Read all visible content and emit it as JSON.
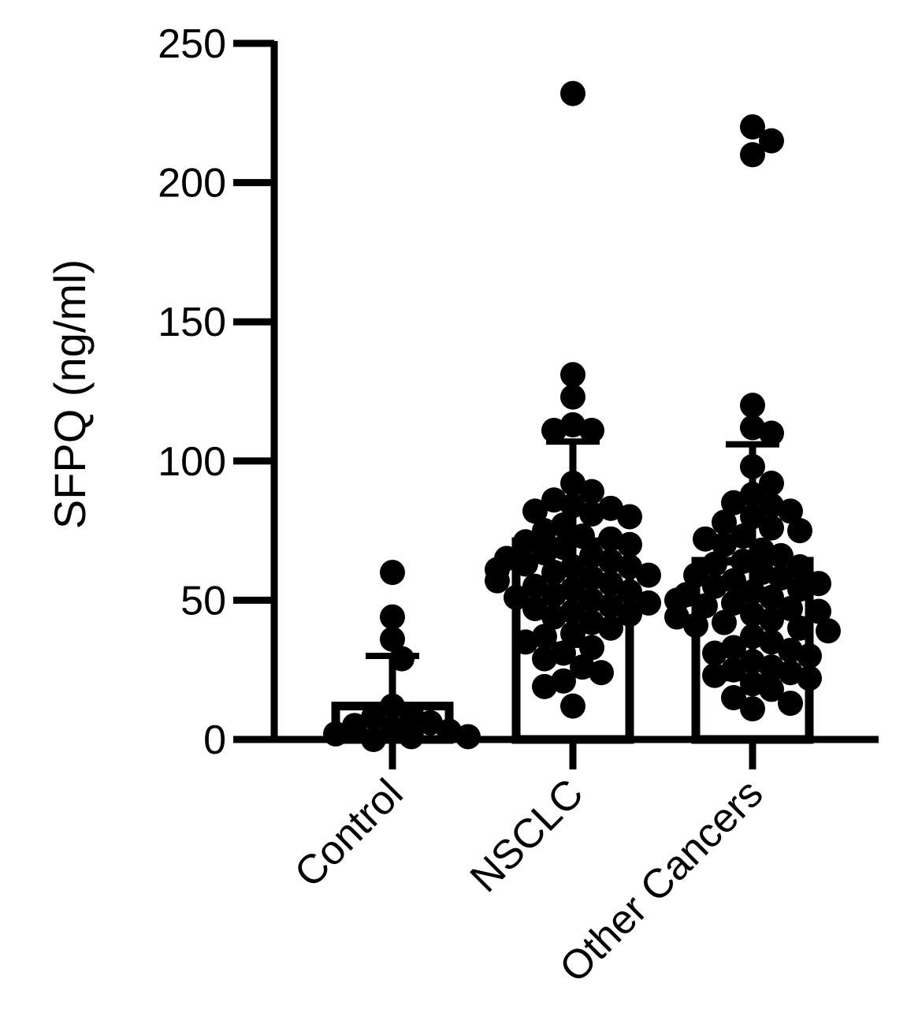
{
  "chart_data": {
    "type": "bar",
    "title": "",
    "xlabel": "",
    "ylabel": "SFPQ  (ng/ml)",
    "ylim": [
      0,
      250
    ],
    "yticks": [
      0,
      50,
      100,
      150,
      200,
      250
    ],
    "categories": [
      "Control",
      "NSCLC",
      "Other Cancers"
    ],
    "values": [
      12,
      71,
      64
    ],
    "error_upper": [
      30,
      107,
      106
    ],
    "error_lower": [
      6,
      34,
      22
    ],
    "grid": false,
    "colors": {
      "bar_fill": "#ffffff",
      "stroke": "#000000",
      "points": "#000000"
    },
    "points": [
      [
        60,
        44,
        36,
        29,
        12,
        9,
        8,
        6,
        5,
        4,
        3,
        2,
        1,
        1,
        0
      ],
      [
        232,
        131,
        123,
        113,
        111,
        111,
        92,
        89,
        86,
        84,
        83,
        82,
        81,
        80,
        77,
        75,
        73,
        72,
        71,
        70,
        69,
        67,
        66,
        65,
        64,
        63,
        62,
        62,
        61,
        60,
        59,
        58,
        57,
        56,
        55,
        54,
        53,
        52,
        51,
        50,
        49,
        48,
        47,
        46,
        45,
        44,
        42,
        40,
        38,
        37,
        35,
        33,
        31,
        29,
        26,
        24,
        21,
        19,
        12
      ],
      [
        220,
        215,
        210,
        120,
        112,
        110,
        98,
        92,
        88,
        85,
        84,
        82,
        80,
        78,
        76,
        75,
        73,
        72,
        70,
        68,
        66,
        64,
        63,
        62,
        60,
        59,
        58,
        57,
        56,
        55,
        54,
        53,
        52,
        51,
        50,
        49,
        48,
        47,
        46,
        45,
        44,
        43,
        42,
        41,
        40,
        39,
        37,
        35,
        33,
        32,
        31,
        30,
        28,
        26,
        25,
        24,
        23,
        22,
        20,
        18,
        15,
        13,
        11
      ]
    ]
  }
}
